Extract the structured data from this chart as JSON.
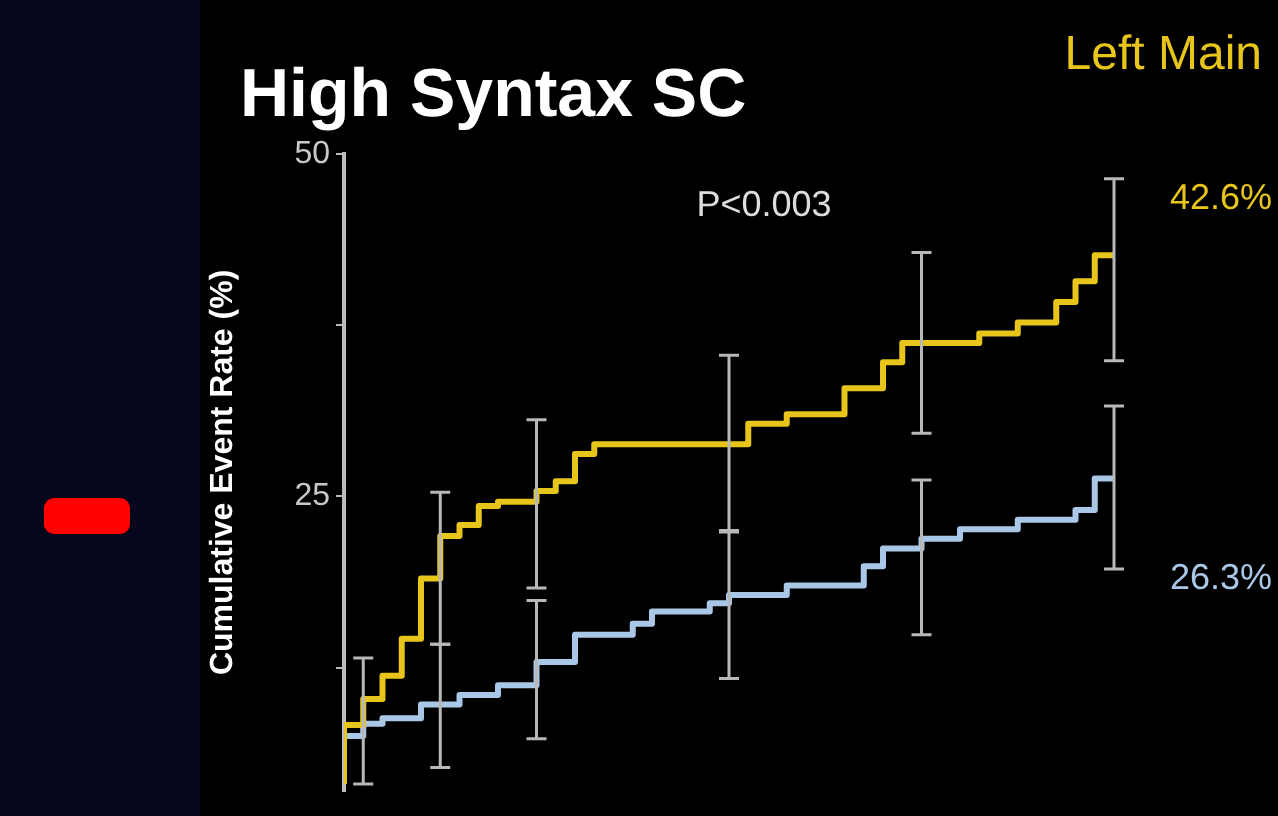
{
  "chart_data": {
    "type": "step",
    "title": "High Syntax SC",
    "ylabel": "Cumulative Event Rate (%)",
    "annotations": [
      "P<0.003"
    ],
    "categories": [
      null,
      null,
      null,
      null,
      null,
      null,
      null,
      null,
      null,
      null,
      null,
      null,
      null,
      null,
      null,
      null,
      null,
      null,
      null,
      null,
      null,
      null,
      null,
      null,
      null,
      null,
      null,
      null,
      null,
      null,
      null,
      null,
      null,
      null,
      null,
      null,
      null,
      null,
      null,
      null,
      null
    ],
    "ylim": [
      3.5,
      50
    ],
    "yticks": [
      {
        "value": 12.5,
        "label": null
      },
      25,
      {
        "value": 37.5,
        "label": null
      },
      50
    ],
    "series": [
      {
        "name": "Left Main",
        "color": "#e8c51a",
        "values": [
          4,
          8.3,
          10.2,
          11.9,
          14.6,
          19.0,
          22.1,
          22.9,
          24.3,
          24.6,
          24.6,
          25.4,
          26.1,
          28.1,
          28.8,
          28.8,
          28.8,
          28.8,
          28.8,
          28.8,
          28.8,
          28.8,
          30.3,
          30.3,
          31.0,
          31.0,
          31.0,
          32.9,
          32.9,
          34.8,
          36.2,
          36.2,
          36.2,
          36.2,
          36.9,
          36.9,
          37.7,
          37.7,
          39.2,
          40.7,
          42.6
        ],
        "errors": [
          null,
          [
            4,
            13.2
          ],
          null,
          null,
          null,
          [
            14.2,
            25.3
          ],
          null,
          null,
          null,
          null,
          [
            18.3,
            30.6
          ],
          null,
          null,
          null,
          null,
          null,
          null,
          null,
          null,
          null,
          [
            22.5,
            35.3
          ],
          null,
          null,
          null,
          null,
          null,
          null,
          null,
          null,
          null,
          [
            29.6,
            42.8
          ],
          null,
          null,
          null,
          null,
          null,
          null,
          null,
          null,
          null,
          [
            34.9,
            48.2
          ]
        ],
        "value_labels": [
          null,
          null,
          null,
          null,
          null,
          null,
          null,
          null,
          null,
          null,
          null,
          null,
          null,
          null,
          null,
          null,
          null,
          null,
          null,
          null,
          null,
          null,
          null,
          null,
          null,
          null,
          null,
          null,
          null,
          null,
          null,
          null,
          null,
          null,
          null,
          null,
          null,
          null,
          null,
          null,
          "42.6%"
        ]
      },
      {
        "color": "#a9c8e8",
        "values": [
          5,
          7.5,
          8.4,
          8.8,
          8.8,
          9.8,
          9.8,
          10.5,
          10.5,
          11.2,
          11.2,
          12.9,
          12.9,
          14.9,
          14.9,
          14.9,
          15.7,
          16.6,
          16.6,
          16.6,
          17.2,
          17.8,
          17.8,
          17.8,
          18.5,
          18.5,
          18.5,
          18.5,
          19.9,
          21.2,
          21.2,
          21.9,
          21.9,
          22.6,
          22.6,
          22.6,
          23.3,
          23.3,
          23.3,
          24.0,
          26.3
        ],
        "errors": [
          null,
          null,
          null,
          null,
          null,
          [
            5.2,
            14.2
          ],
          null,
          null,
          null,
          null,
          [
            7.3,
            17.4
          ],
          null,
          null,
          null,
          null,
          null,
          null,
          null,
          null,
          null,
          [
            11.7,
            22.4
          ],
          null,
          null,
          null,
          null,
          null,
          null,
          null,
          null,
          null,
          [
            14.9,
            26.2
          ],
          null,
          null,
          null,
          null,
          null,
          null,
          null,
          null,
          null,
          [
            19.7,
            31.6
          ]
        ],
        "value_labels": [
          null,
          null,
          null,
          null,
          null,
          null,
          null,
          null,
          null,
          null,
          null,
          null,
          null,
          null,
          null,
          null,
          null,
          null,
          null,
          null,
          null,
          null,
          null,
          null,
          null,
          null,
          null,
          null,
          null,
          null,
          null,
          null,
          null,
          null,
          null,
          null,
          null,
          null,
          null,
          null,
          "26.3%"
        ]
      }
    ]
  }
}
